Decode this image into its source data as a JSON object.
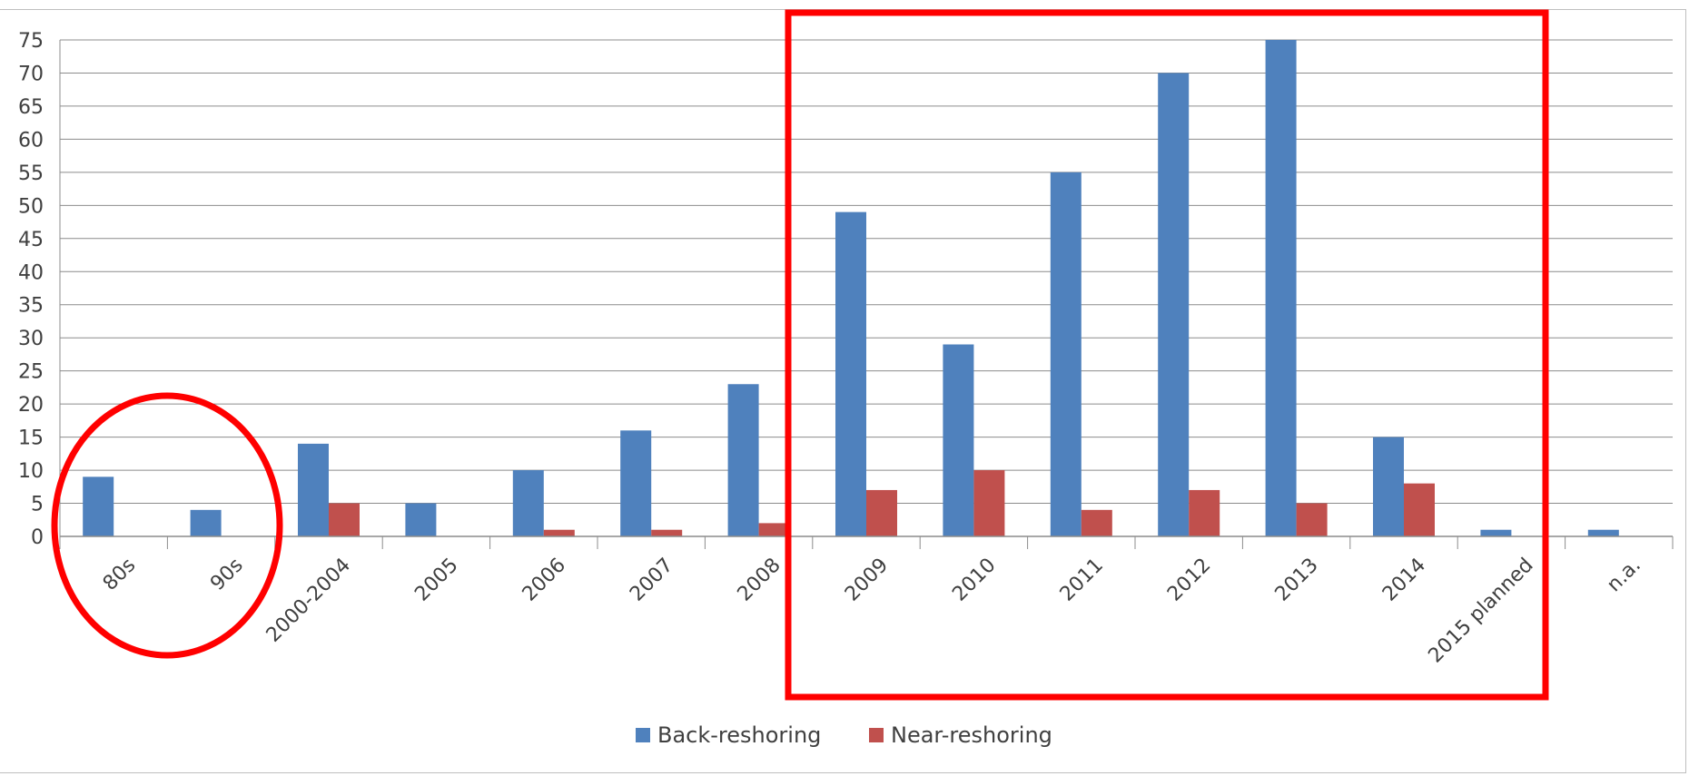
{
  "chart_data": {
    "type": "bar",
    "categories": [
      "80s",
      "90s",
      "2000-2004",
      "2005",
      "2006",
      "2007",
      "2008",
      "2009",
      "2010",
      "2011",
      "2012",
      "2013",
      "2014",
      "2015 planned",
      "n.a."
    ],
    "series": [
      {
        "name": "Back-reshoring",
        "color": "#4f81bd",
        "values": [
          9,
          4,
          14,
          5,
          10,
          16,
          23,
          49,
          29,
          55,
          70,
          75,
          15,
          1,
          1
        ]
      },
      {
        "name": "Near-reshoring",
        "color": "#c0504d",
        "values": [
          0,
          0,
          5,
          0,
          1,
          1,
          2,
          7,
          10,
          4,
          7,
          5,
          8,
          0,
          0
        ]
      }
    ],
    "ylim": [
      0,
      75
    ],
    "yticks": [
      "0",
      "5",
      "10",
      "15",
      "20",
      "25",
      "30",
      "35",
      "40",
      "45",
      "50",
      "55",
      "60",
      "65",
      "70",
      "75"
    ],
    "grid": true,
    "legend_position": "bottom",
    "annotations": [
      {
        "type": "ellipse",
        "label": "circle around 80s and 90s",
        "color": "#ff0000",
        "categories": [
          "80s",
          "90s"
        ]
      },
      {
        "type": "rectangle",
        "label": "box around 2009 to 2015 planned",
        "color": "#ff0000",
        "categories": [
          "2009",
          "2015 planned"
        ]
      }
    ]
  }
}
